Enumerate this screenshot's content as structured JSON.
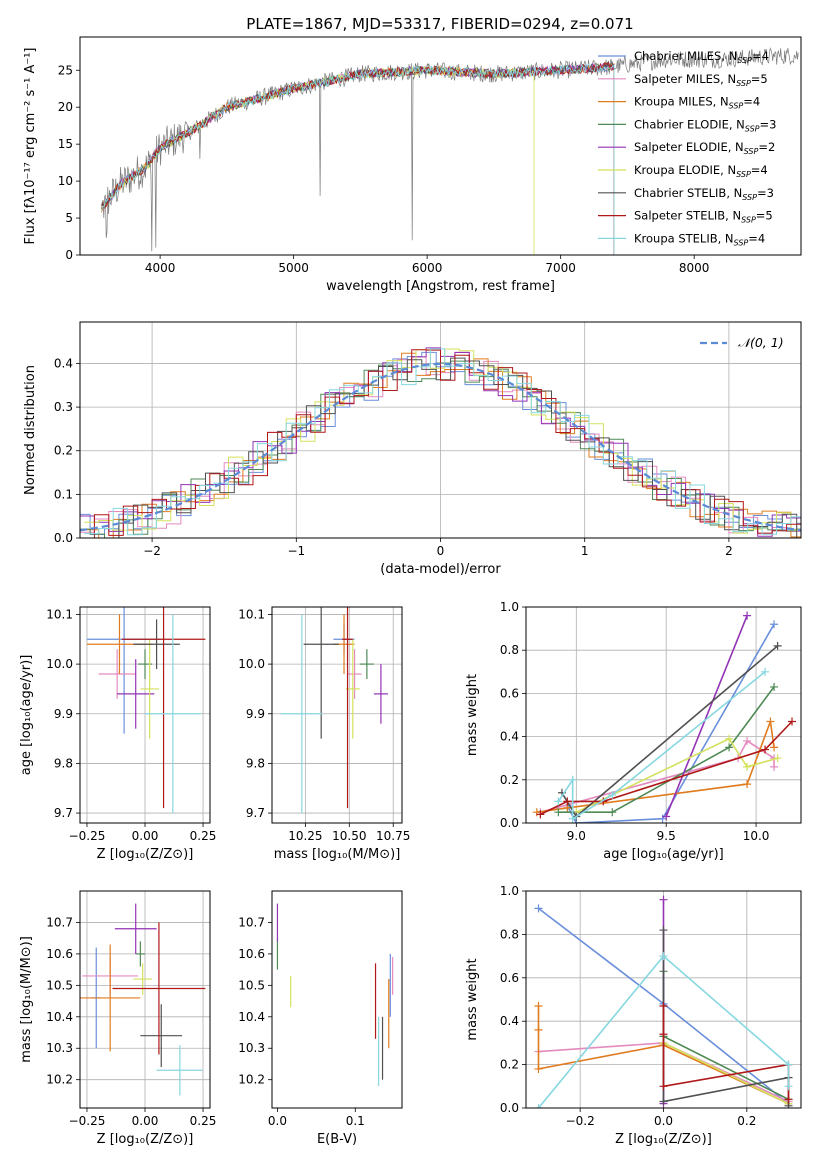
{
  "title": "PLATE=1867, MJD=53317, FIBERID=0294, z=0.071",
  "model_labels": [
    "Chabrier MILES",
    "Salpeter MILES",
    "Kroupa MILES",
    "Chabrier ELODIE",
    "Salpeter ELODIE",
    "Kroupa ELODIE",
    "Chabrier STELIB",
    "Salpeter STELIB",
    "Kroupa STELIB"
  ],
  "model_colors": [
    "#6a8fdc",
    "#e48abf",
    "#e07b1f",
    "#4f8a55",
    "#9333b5",
    "#d4e15d",
    "#505050",
    "#b01818",
    "#86d7e0"
  ],
  "chart_data": [
    {
      "id": "spectrum",
      "type": "line",
      "title": "PLATE=1867, MJD=53317, FIBERID=0294, z=0.071",
      "xlabel": "wavelength [Angstrom, rest frame]",
      "ylabel": "Flux [fλ10⁻¹⁷ erg cm⁻² s⁻¹ A⁻¹]",
      "xlim": [
        3400,
        8800
      ],
      "ylim": [
        0,
        29.5
      ],
      "xticks": [
        4000,
        5000,
        6000,
        7000,
        8000
      ],
      "yticks": [
        0,
        5,
        10,
        15,
        20,
        25
      ],
      "legend": "right",
      "legend_entries": [
        {
          "model": "Chabrier MILES",
          "nssp": "4"
        },
        {
          "model": "Salpeter MILES",
          "nssp": "5"
        },
        {
          "model": "Kroupa MILES",
          "nssp": "4"
        },
        {
          "model": "Chabrier ELODIE",
          "nssp": "3"
        },
        {
          "model": "Salpeter ELODIE",
          "nssp": "2"
        },
        {
          "model": "Kroupa ELODIE",
          "nssp": "4"
        },
        {
          "model": "Chabrier STELIB",
          "nssp": "3"
        },
        {
          "model": "Salpeter STELIB",
          "nssp": "5"
        },
        {
          "model": "Kroupa STELIB",
          "nssp": "4"
        }
      ],
      "continuum_x": [
        3550,
        3700,
        3900,
        4000,
        4300,
        4500,
        5000,
        5500,
        6000,
        6500,
        7000,
        7400,
        7800,
        8200,
        8700
      ],
      "continuum_y": [
        6,
        9.5,
        12,
        14.5,
        17.5,
        20,
        22.5,
        24.5,
        25,
        24.5,
        25,
        25.5,
        26.5,
        26.5,
        27
      ],
      "models_end_x": [
        7400,
        7400,
        7400,
        7400,
        7400,
        6800,
        7400,
        7400,
        7400
      ]
    },
    {
      "id": "residuals",
      "type": "histogram",
      "xlabel": "(data-model)/error",
      "ylabel": "Normed distribution",
      "xlim": [
        -2.5,
        2.5
      ],
      "ylim": [
        0,
        0.495
      ],
      "xticks": [
        -2,
        -1,
        0,
        1,
        2
      ],
      "yticks": [
        0.0,
        0.1,
        0.2,
        0.3,
        0.4
      ],
      "grid": true,
      "legend": "upper-right",
      "normal_label": "𝒩(0, 1)",
      "normal_color": "#5b8bd6",
      "bin_width": 0.1
    },
    {
      "id": "z-age",
      "type": "errorbar",
      "xlabel": "Z [log₁₀(Z/Z⊙)]",
      "ylabel": "age  [log₁₀(age/yr)]",
      "xlim": [
        -0.28,
        0.28
      ],
      "ylim": [
        9.68,
        10.115
      ],
      "xticks": [
        -0.25,
        0.0,
        0.25
      ],
      "yticks": [
        9.7,
        9.8,
        9.9,
        10.0,
        10.1
      ],
      "grid": true,
      "points": [
        {
          "x": -0.09,
          "xerr": 0.16,
          "y": 10.05,
          "yerr": 0.19
        },
        {
          "x": -0.12,
          "xerr": 0.08,
          "y": 9.98,
          "yerr": 0.05
        },
        {
          "x": -0.11,
          "xerr": 0.14,
          "y": 10.04,
          "yerr": 0.06
        },
        {
          "x": 0.0,
          "xerr": 0.03,
          "y": 10.0,
          "yerr": 0.03
        },
        {
          "x": -0.04,
          "xerr": 0.08,
          "y": 9.94,
          "yerr": 0.07
        },
        {
          "x": 0.02,
          "xerr": 0.04,
          "y": 9.95,
          "yerr": 0.1
        },
        {
          "x": 0.05,
          "xerr": 0.1,
          "y": 10.04,
          "yerr": 0.05
        },
        {
          "x": 0.08,
          "xerr": 0.18,
          "y": 10.05,
          "yerr": 0.34
        },
        {
          "x": 0.12,
          "xerr": 0.12,
          "y": 9.9,
          "yerr": 0.2
        }
      ]
    },
    {
      "id": "mass-age",
      "type": "errorbar",
      "xlabel": "mass [log₁₀(M/M⊙)]",
      "ylabel": "",
      "xlim": [
        10.06,
        10.8
      ],
      "ylim": [
        9.68,
        10.115
      ],
      "xticks": [
        10.25,
        10.5,
        10.75
      ],
      "yticks": [
        9.7,
        9.8,
        9.9,
        10.0,
        10.1
      ],
      "grid": true,
      "points": [
        {
          "x": 10.47,
          "xerr": 0.06,
          "y": 10.05,
          "yerr": 0.03
        },
        {
          "x": 10.53,
          "xerr": 0.04,
          "y": 9.98,
          "yerr": 0.05
        },
        {
          "x": 10.47,
          "xerr": 0.06,
          "y": 10.04,
          "yerr": 0.06
        },
        {
          "x": 10.6,
          "xerr": 0.04,
          "y": 10.0,
          "yerr": 0.03
        },
        {
          "x": 10.68,
          "xerr": 0.04,
          "y": 9.94,
          "yerr": 0.06
        },
        {
          "x": 10.52,
          "xerr": 0.04,
          "y": 9.95,
          "yerr": 0.1
        },
        {
          "x": 10.34,
          "xerr": 0.1,
          "y": 10.04,
          "yerr": 0.19
        },
        {
          "x": 10.49,
          "xerr": 0.03,
          "y": 10.05,
          "yerr": 0.34
        },
        {
          "x": 10.23,
          "xerr": 0.12,
          "y": 9.9,
          "yerr": 0.2
        }
      ]
    },
    {
      "id": "age-weight",
      "type": "line",
      "xlabel": "age  [log₁₀(age/yr)]",
      "ylabel": "mass weight",
      "xlim": [
        8.72,
        10.25
      ],
      "ylim": [
        0,
        1.0
      ],
      "xticks": [
        9.0,
        9.5,
        10.0
      ],
      "yticks": [
        0.0,
        0.2,
        0.4,
        0.6,
        0.8,
        1.0
      ],
      "grid": true,
      "series": [
        {
          "x": [
            8.95,
            9.0,
            9.48,
            10.1
          ],
          "y": [
            0.08,
            0.0,
            0.02,
            0.92
          ]
        },
        {
          "x": [
            8.8,
            9.9,
            9.95,
            10.1,
            10.1
          ],
          "y": [
            0.05,
            0.3,
            0.38,
            0.3,
            0.26
          ]
        },
        {
          "x": [
            8.78,
            8.95,
            9.95,
            10.08,
            10.1
          ],
          "y": [
            0.05,
            0.07,
            0.18,
            0.47,
            0.35
          ]
        },
        {
          "x": [
            8.9,
            9.2,
            9.85,
            10.1
          ],
          "y": [
            0.05,
            0.05,
            0.35,
            0.63
          ]
        },
        {
          "x": [
            9.5,
            9.95
          ],
          "y": [
            0.03,
            0.96
          ]
        },
        {
          "x": [
            9.0,
            9.85,
            9.95,
            10.12
          ],
          "y": [
            0.05,
            0.39,
            0.26,
            0.3
          ]
        },
        {
          "x": [
            8.92,
            9.0,
            10.12
          ],
          "y": [
            0.14,
            0.03,
            0.82
          ]
        },
        {
          "x": [
            8.8,
            8.95,
            9.15,
            10.05,
            10.2
          ],
          "y": [
            0.04,
            0.1,
            0.1,
            0.34,
            0.47
          ]
        },
        {
          "x": [
            8.9,
            8.98,
            8.98,
            9.2,
            10.05
          ],
          "y": [
            0.1,
            0.2,
            0.02,
            0.13,
            0.7
          ]
        }
      ]
    },
    {
      "id": "z-mass",
      "type": "errorbar",
      "xlabel": "Z [log₁₀(Z/Z⊙)]",
      "ylabel": "mass [log₁₀(M/M⊙)]",
      "xlim": [
        -0.28,
        0.28
      ],
      "ylim": [
        10.11,
        10.8
      ],
      "xticks": [
        -0.25,
        0.0,
        0.25
      ],
      "yticks": [
        10.2,
        10.3,
        10.4,
        10.5,
        10.6,
        10.7
      ],
      "grid": true,
      "points": [
        {
          "x": -0.21,
          "xerr": 0.02,
          "y": 10.46,
          "yerr": 0.16
        },
        {
          "x": -0.15,
          "xerr": 0.12,
          "y": 10.53,
          "yerr": 0.06
        },
        {
          "x": -0.15,
          "xerr": 0.13,
          "y": 10.46,
          "yerr": 0.17
        },
        {
          "x": -0.02,
          "xerr": 0.02,
          "y": 10.6,
          "yerr": 0.04
        },
        {
          "x": -0.04,
          "xerr": 0.09,
          "y": 10.68,
          "yerr": 0.08
        },
        {
          "x": -0.01,
          "xerr": 0.04,
          "y": 10.52,
          "yerr": 0.05
        },
        {
          "x": 0.07,
          "xerr": 0.09,
          "y": 10.34,
          "yerr": 0.1
        },
        {
          "x": 0.06,
          "xerr": 0.2,
          "y": 10.49,
          "yerr": 0.21
        },
        {
          "x": 0.15,
          "xerr": 0.1,
          "y": 10.23,
          "yerr": 0.08
        }
      ]
    },
    {
      "id": "ebv-mass",
      "type": "errorbar",
      "xlabel": "E(B-V)",
      "ylabel": "",
      "xlim": [
        -0.007,
        0.16
      ],
      "ylim": [
        10.11,
        10.8
      ],
      "xticks": [
        0.0,
        0.1
      ],
      "yticks": [
        10.2,
        10.3,
        10.4,
        10.5,
        10.6,
        10.7
      ],
      "grid": false,
      "points": [
        {
          "x": 0.145,
          "xerr": 0,
          "y": 10.5,
          "yerr": 0.1
        },
        {
          "x": 0.148,
          "xerr": 0,
          "y": 10.53,
          "yerr": 0.06
        },
        {
          "x": 0.143,
          "xerr": 0,
          "y": 10.41,
          "yerr": 0.11
        },
        {
          "x": 0.0,
          "xerr": 0,
          "y": 10.6,
          "yerr": 0.05
        },
        {
          "x": 0.0,
          "xerr": 0,
          "y": 10.7,
          "yerr": 0.06
        },
        {
          "x": 0.017,
          "xerr": 0,
          "y": 10.48,
          "yerr": 0.05
        },
        {
          "x": 0.135,
          "xerr": 0,
          "y": 10.3,
          "yerr": 0.1
        },
        {
          "x": 0.126,
          "xerr": 0,
          "y": 10.45,
          "yerr": 0.12
        },
        {
          "x": 0.13,
          "xerr": 0,
          "y": 10.29,
          "yerr": 0.11
        }
      ]
    },
    {
      "id": "z-weight",
      "type": "line",
      "xlabel": "Z [log₁₀(Z/Z⊙)]",
      "ylabel": "mass weight",
      "xlim": [
        -0.33,
        0.33
      ],
      "ylim": [
        0,
        1.0
      ],
      "xticks": [
        -0.2,
        0.0,
        0.2
      ],
      "yticks": [
        0.0,
        0.2,
        0.4,
        0.6,
        0.8,
        1.0
      ],
      "grid": true,
      "series": [
        {
          "x": [
            -0.3,
            0.0,
            0.3
          ],
          "y": [
            0.92,
            0.48,
            0.02
          ]
        },
        {
          "x": [
            -0.3,
            0.0,
            0.3
          ],
          "y": [
            0.26,
            0.3,
            0.03
          ]
        },
        {
          "x": [
            -0.3,
            -0.3,
            -0.3,
            0.0,
            0.3
          ],
          "y": [
            0.47,
            0.36,
            0.18,
            0.29,
            0.02
          ]
        },
        {
          "x": [
            0.0,
            0.0,
            0.3
          ],
          "y": [
            0.63,
            0.33,
            0.04
          ]
        },
        {
          "x": [
            0.0,
            0.0
          ],
          "y": [
            0.96,
            0.02
          ]
        },
        {
          "x": [
            0.0,
            0.3
          ],
          "y": [
            0.3,
            0.02
          ]
        },
        {
          "x": [
            0.0,
            0.0,
            0.3,
            0.3
          ],
          "y": [
            0.82,
            0.03,
            0.14,
            0.01
          ]
        },
        {
          "x": [
            0.0,
            0.0,
            0.0,
            0.3,
            0.3
          ],
          "y": [
            0.47,
            0.34,
            0.1,
            0.2,
            0.04
          ]
        },
        {
          "x": [
            -0.3,
            0.0,
            0.3,
            0.3
          ],
          "y": [
            0.0,
            0.7,
            0.2,
            0.1
          ]
        }
      ]
    }
  ]
}
